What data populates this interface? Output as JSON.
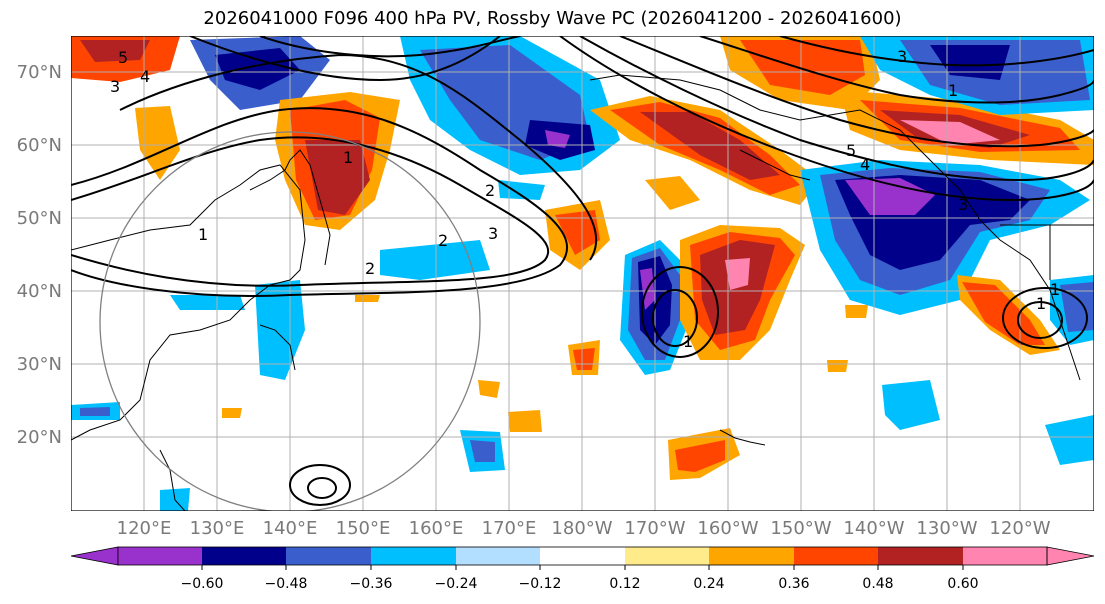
{
  "title": "2026041000 F096 400 hPa PV, Rossby Wave PC (2026041200 - 2026041600)",
  "lat_labels": [
    "70°N",
    "60°N",
    "50°N",
    "40°N",
    "30°N",
    "20°N"
  ],
  "lon_labels": [
    "120°E",
    "130°E",
    "140°E",
    "150°E",
    "160°E",
    "170°E",
    "180°W",
    "170°W",
    "160°W",
    "150°W",
    "140°W",
    "130°W",
    "120°W"
  ],
  "colorbar": {
    "colors": [
      "#9932cc",
      "#00008b",
      "#3a5fcd",
      "#00bfff",
      "#b2dfff",
      "#ffffff",
      "#ffeb8a",
      "#ffa500",
      "#ff4500",
      "#b22222",
      "#ff85b0"
    ],
    "tick_labels": [
      "−0.60",
      "−0.48",
      "−0.36",
      "−0.24",
      "−0.12",
      "0.12",
      "0.24",
      "0.36",
      "0.48",
      "0.60"
    ]
  },
  "contour_labels": [
    "5",
    "4",
    "3",
    "1",
    "2",
    "2",
    "3",
    "2",
    "1",
    "1",
    "3",
    "4",
    "5",
    "1",
    "1",
    "1",
    "3"
  ]
}
